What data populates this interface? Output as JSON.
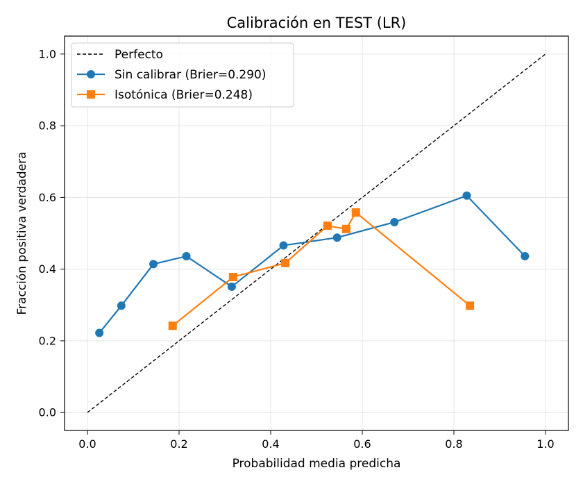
{
  "chart_data": {
    "type": "line",
    "title": "Calibración en TEST (LR)",
    "xlabel": "Probabilidad media predicha",
    "ylabel": "Fracción positiva verdadera",
    "xlim": [
      -0.05,
      1.05
    ],
    "ylim": [
      -0.05,
      1.05
    ],
    "xticks": [
      "0.0",
      "0.2",
      "0.4",
      "0.6",
      "0.8",
      "1.0"
    ],
    "yticks": [
      "0.0",
      "0.2",
      "0.4",
      "0.6",
      "0.8",
      "1.0"
    ],
    "grid": true,
    "legend_position": "top-left",
    "series": [
      {
        "name": "Perfecto",
        "color": "#000000",
        "style": "dashed",
        "marker": "none",
        "x": [
          0.0,
          1.0
        ],
        "y": [
          0.0,
          1.0
        ]
      },
      {
        "name": "Sin calibrar (Brier=0.290)",
        "color": "#1f77b4",
        "style": "solid",
        "marker": "circle",
        "x": [
          0.026,
          0.074,
          0.144,
          0.216,
          0.315,
          0.428,
          0.545,
          0.67,
          0.828,
          0.955
        ],
        "y": [
          0.222,
          0.298,
          0.414,
          0.436,
          0.351,
          0.466,
          0.488,
          0.531,
          0.605,
          0.436
        ]
      },
      {
        "name": "Isotónica (Brier=0.248)",
        "color": "#ff7f0e",
        "style": "solid",
        "marker": "square",
        "x": [
          0.186,
          0.318,
          0.432,
          0.524,
          0.565,
          0.586,
          0.835
        ],
        "y": [
          0.242,
          0.378,
          0.417,
          0.521,
          0.512,
          0.558,
          0.298
        ]
      }
    ]
  }
}
